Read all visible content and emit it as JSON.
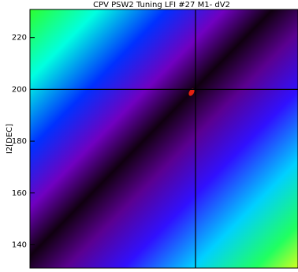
{
  "chart_data": {
    "type": "heatmap",
    "title": "CPV PSW2 Tuning LFI #27 M1- dV2",
    "y_label": "I2[DEC]",
    "ylim": [
      131,
      233
    ],
    "yticks": [
      140,
      160,
      180,
      200,
      220
    ]
  }
}
